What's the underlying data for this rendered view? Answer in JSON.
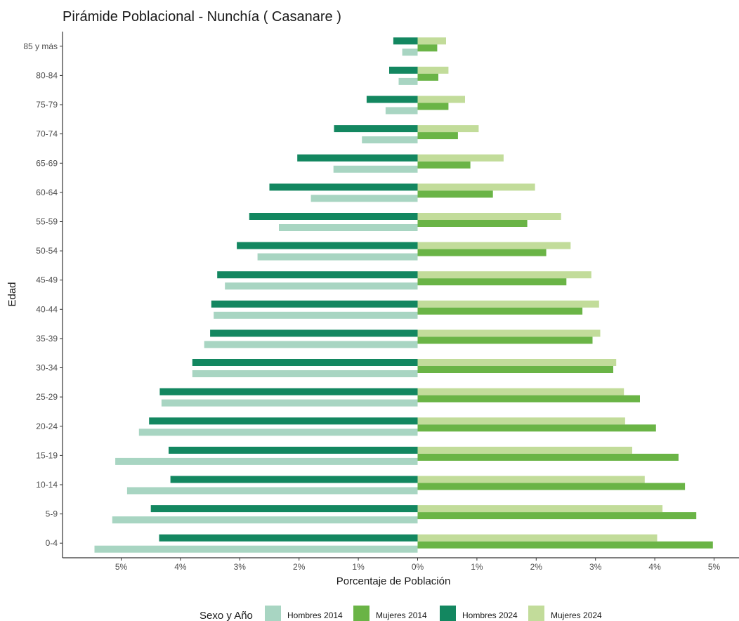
{
  "chart_data": {
    "type": "bar",
    "orientation": "horizontal",
    "title": "Pirámide Poblacional - Nunchía ( Casanare )",
    "xlabel": "Porcentaje de Población",
    "ylabel": "Edad",
    "xlim": [
      -5.5,
      5.5
    ],
    "x_ticks": [
      -5,
      -4,
      -3,
      -2,
      -1,
      0,
      1,
      2,
      3,
      4,
      5
    ],
    "x_tick_labels": [
      "5%",
      "4%",
      "3%",
      "2%",
      "1%",
      "0%",
      "1%",
      "2%",
      "3%",
      "4%",
      "5%"
    ],
    "grid": false,
    "legend_title": "Sexo y Año",
    "legend_position": "bottom",
    "categories": [
      "0-4",
      "5-9",
      "10-14",
      "15-19",
      "20-24",
      "25-29",
      "30-34",
      "35-39",
      "40-44",
      "45-49",
      "50-54",
      "55-59",
      "60-64",
      "65-69",
      "70-74",
      "75-79",
      "80-84",
      "85 y más"
    ],
    "series": [
      {
        "name": "Hombres 2014",
        "color": "#a8d5c2",
        "values": [
          -5.45,
          -5.15,
          -4.9,
          -5.1,
          -4.7,
          -4.32,
          -3.8,
          -3.6,
          -3.44,
          -3.25,
          -2.7,
          -2.34,
          -1.8,
          -1.42,
          -0.94,
          -0.54,
          -0.32,
          -0.26
        ]
      },
      {
        "name": "Mujeres 2014",
        "color": "#6ab446",
        "values": [
          4.98,
          4.7,
          4.51,
          4.4,
          4.02,
          3.75,
          3.3,
          2.95,
          2.78,
          2.51,
          2.17,
          1.85,
          1.27,
          0.89,
          0.68,
          0.52,
          0.35,
          0.33
        ]
      },
      {
        "name": "Hombres 2024",
        "color": "#138760",
        "values": [
          -4.36,
          -4.5,
          -4.17,
          -4.2,
          -4.53,
          -4.35,
          -3.8,
          -3.5,
          -3.48,
          -3.38,
          -3.05,
          -2.84,
          -2.5,
          -2.03,
          -1.41,
          -0.86,
          -0.48,
          -0.41
        ]
      },
      {
        "name": "Mujeres 2024",
        "color": "#c2dc9a",
        "values": [
          4.04,
          4.13,
          3.83,
          3.62,
          3.5,
          3.48,
          3.35,
          3.08,
          3.06,
          2.93,
          2.58,
          2.42,
          1.98,
          1.45,
          1.03,
          0.8,
          0.52,
          0.48
        ]
      }
    ],
    "legend_order": [
      "Hombres 2014",
      "Mujeres 2014",
      "Hombres 2024",
      "Mujeres 2024"
    ]
  }
}
